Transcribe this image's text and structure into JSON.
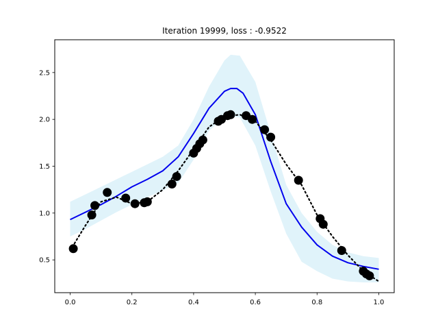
{
  "chart_data": {
    "type": "line",
    "title": "Iteration 19999, loss : -0.9522",
    "xlabel": "",
    "ylabel": "",
    "xlim": [
      -0.05,
      1.05
    ],
    "ylim": [
      0.15,
      2.85
    ],
    "x_ticks": [
      0.0,
      0.2,
      0.4,
      0.6,
      0.8,
      1.0
    ],
    "x_tick_labels": [
      "0.0",
      "0.2",
      "0.4",
      "0.6",
      "0.8",
      "1.0"
    ],
    "y_ticks": [
      0.5,
      1.0,
      1.5,
      2.0,
      2.5
    ],
    "y_tick_labels": [
      "0.5",
      "1.0",
      "1.5",
      "2.0",
      "2.5"
    ],
    "grid": false,
    "colors": {
      "band": "#e0f3fa",
      "mean_line": "#0000ee",
      "target_line": "#000000",
      "points": "#000000"
    },
    "series": [
      {
        "style": "band",
        "x": [
          0.0,
          0.05,
          0.1,
          0.15,
          0.2,
          0.25,
          0.3,
          0.35,
          0.4,
          0.45,
          0.5,
          0.52,
          0.55,
          0.6,
          0.65,
          0.7,
          0.75,
          0.8,
          0.85,
          0.9,
          0.95,
          1.0
        ],
        "upper": [
          1.12,
          1.2,
          1.28,
          1.36,
          1.44,
          1.52,
          1.6,
          1.72,
          2.0,
          2.35,
          2.63,
          2.69,
          2.68,
          2.4,
          1.85,
          1.3,
          1.0,
          0.8,
          0.66,
          0.58,
          0.54,
          0.52
        ],
        "lower": [
          0.75,
          0.83,
          0.92,
          1.01,
          1.09,
          1.17,
          1.24,
          1.32,
          1.57,
          1.88,
          2.02,
          2.03,
          2.02,
          1.72,
          1.23,
          0.78,
          0.48,
          0.38,
          0.3,
          0.27,
          0.26,
          0.26
        ]
      },
      {
        "style": "mean",
        "x": [
          0.0,
          0.05,
          0.1,
          0.15,
          0.2,
          0.25,
          0.3,
          0.35,
          0.4,
          0.45,
          0.5,
          0.52,
          0.54,
          0.56,
          0.6,
          0.65,
          0.7,
          0.75,
          0.8,
          0.85,
          0.9,
          0.95,
          1.0
        ],
        "y": [
          0.93,
          1.01,
          1.09,
          1.18,
          1.28,
          1.36,
          1.45,
          1.6,
          1.85,
          2.12,
          2.3,
          2.33,
          2.33,
          2.28,
          2.05,
          1.55,
          1.1,
          0.85,
          0.66,
          0.54,
          0.47,
          0.43,
          0.4
        ]
      },
      {
        "style": "target",
        "x": [
          0.0,
          0.05,
          0.1,
          0.15,
          0.2,
          0.25,
          0.3,
          0.35,
          0.4,
          0.45,
          0.5,
          0.55,
          0.6,
          0.65,
          0.7,
          0.75,
          0.8,
          0.85,
          0.9,
          0.95,
          1.0
        ],
        "y": [
          0.6,
          0.87,
          1.12,
          1.17,
          1.1,
          1.12,
          1.25,
          1.45,
          1.68,
          1.92,
          2.03,
          2.05,
          1.98,
          1.78,
          1.52,
          1.3,
          0.98,
          0.75,
          0.55,
          0.38,
          0.27
        ]
      },
      {
        "style": "points",
        "x": [
          0.01,
          0.07,
          0.08,
          0.12,
          0.18,
          0.21,
          0.24,
          0.25,
          0.33,
          0.345,
          0.4,
          0.41,
          0.42,
          0.43,
          0.48,
          0.49,
          0.51,
          0.52,
          0.57,
          0.59,
          0.63,
          0.65,
          0.74,
          0.81,
          0.82,
          0.88,
          0.95,
          0.96,
          0.97
        ],
        "y": [
          0.62,
          0.98,
          1.08,
          1.22,
          1.16,
          1.1,
          1.11,
          1.12,
          1.31,
          1.39,
          1.64,
          1.69,
          1.74,
          1.78,
          1.98,
          2.0,
          2.04,
          2.05,
          2.04,
          2.0,
          1.89,
          1.81,
          1.35,
          0.94,
          0.88,
          0.6,
          0.38,
          0.35,
          0.33
        ]
      }
    ]
  }
}
